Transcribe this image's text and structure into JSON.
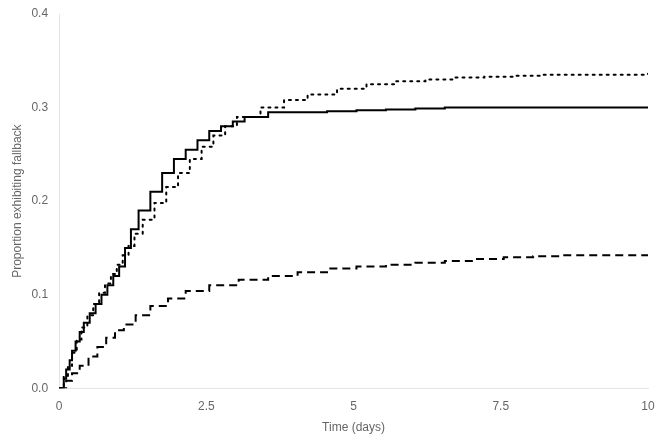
{
  "chart_data": {
    "type": "step",
    "xlabel": "Time (days)",
    "ylabel": "Proportion exhibiting fallback",
    "xlim": [
      0,
      10
    ],
    "ylim": [
      0,
      0.4
    ],
    "xticks": [
      0,
      2.5,
      5,
      7.5,
      10
    ],
    "yticks": [
      {
        "value": 0,
        "label": "0.0"
      },
      0.1,
      0.2,
      0.3,
      0.4
    ],
    "grid": false,
    "series": [
      {
        "color": "#000000",
        "line_style": "solid",
        "x": [
          0,
          0.08,
          0.12,
          0.18,
          0.22,
          0.28,
          0.35,
          0.42,
          0.52,
          0.62,
          0.72,
          0.82,
          0.92,
          1.02,
          1.12,
          1.22,
          1.35,
          1.55,
          1.75,
          1.95,
          2.15,
          2.35,
          2.55,
          2.75,
          2.95,
          3.15,
          3.55,
          4.05,
          4.55,
          5.05,
          5.55,
          6.05,
          6.55,
          7.05,
          7.55,
          7.85,
          10.0
        ],
        "values": [
          0,
          0.01,
          0.02,
          0.03,
          0.04,
          0.05,
          0.06,
          0.07,
          0.08,
          0.09,
          0.1,
          0.11,
          0.12,
          0.13,
          0.15,
          0.17,
          0.19,
          0.21,
          0.23,
          0.245,
          0.255,
          0.265,
          0.275,
          0.28,
          0.285,
          0.29,
          0.295,
          0.295,
          0.296,
          0.297,
          0.298,
          0.299,
          0.3,
          0.3,
          0.3,
          0.3,
          0.3
        ]
      },
      {
        "color": "#000000",
        "line_style": "dotted",
        "x": [
          0,
          0.08,
          0.15,
          0.22,
          0.3,
          0.38,
          0.48,
          0.58,
          0.68,
          0.78,
          0.88,
          0.98,
          1.08,
          1.18,
          1.28,
          1.42,
          1.62,
          1.82,
          2.02,
          2.22,
          2.42,
          2.62,
          2.82,
          3.02,
          3.42,
          3.82,
          4.22,
          4.72,
          5.22,
          5.72,
          6.22,
          6.72,
          7.22,
          7.72,
          8.22,
          10.0
        ],
        "values": [
          0,
          0.012,
          0.024,
          0.038,
          0.052,
          0.065,
          0.078,
          0.09,
          0.102,
          0.112,
          0.122,
          0.132,
          0.142,
          0.152,
          0.165,
          0.18,
          0.198,
          0.215,
          0.23,
          0.245,
          0.258,
          0.27,
          0.28,
          0.29,
          0.3,
          0.308,
          0.314,
          0.32,
          0.325,
          0.328,
          0.33,
          0.332,
          0.333,
          0.334,
          0.335,
          0.336
        ]
      },
      {
        "color": "#000000",
        "line_style": "dashed",
        "x": [
          0,
          0.12,
          0.22,
          0.35,
          0.5,
          0.65,
          0.8,
          0.95,
          1.1,
          1.3,
          1.55,
          1.85,
          2.15,
          2.55,
          3.05,
          3.55,
          4.05,
          4.55,
          5.05,
          5.55,
          6.05,
          6.55,
          7.05,
          7.55,
          8.05,
          8.55,
          9.05,
          9.55,
          10.0
        ],
        "values": [
          0,
          0.008,
          0.016,
          0.024,
          0.034,
          0.044,
          0.054,
          0.062,
          0.068,
          0.078,
          0.088,
          0.096,
          0.104,
          0.11,
          0.116,
          0.12,
          0.124,
          0.128,
          0.13,
          0.132,
          0.134,
          0.136,
          0.138,
          0.14,
          0.141,
          0.142,
          0.142,
          0.142,
          0.142
        ]
      }
    ]
  }
}
